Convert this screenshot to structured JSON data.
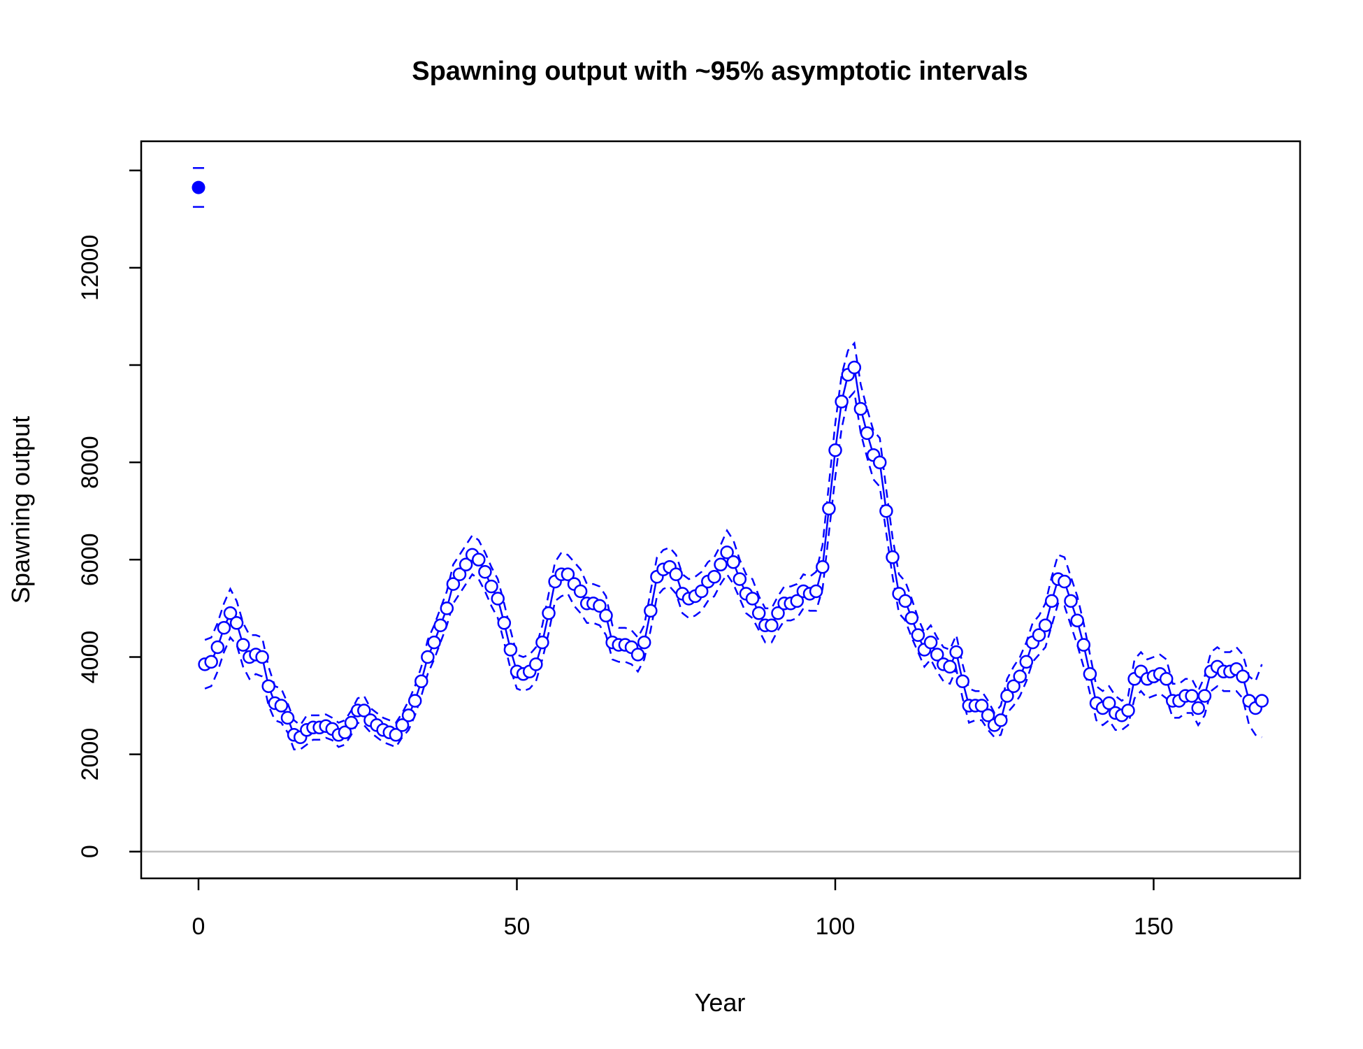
{
  "chart_data": {
    "type": "line",
    "title": "Spawning output with ~95% asymptotic intervals",
    "xlabel": "Year",
    "ylabel": "Spawning output",
    "xlim": [
      -9,
      173
    ],
    "ylim": [
      -550,
      14600
    ],
    "x_ticks": [
      0,
      50,
      100,
      150
    ],
    "y_ticks": [
      0,
      2000,
      4000,
      6000,
      8000,
      12000
    ],
    "grid": false,
    "legend": "none",
    "colors": {
      "series": "#0000ff",
      "zero_line": "#bebebe",
      "axis": "#000000"
    },
    "virgin": {
      "x": 0,
      "y": 13650,
      "lower": 13250,
      "upper": 14050
    },
    "series": [
      {
        "x_start": 1,
        "values": [
          3850,
          3900,
          4200,
          4600,
          4900,
          4700,
          4250,
          4000,
          4050,
          4000,
          3400,
          3050,
          3000,
          2750,
          2400,
          2350,
          2500,
          2550,
          2550,
          2580,
          2520,
          2400,
          2450,
          2650,
          2900,
          2900,
          2700,
          2600,
          2500,
          2450,
          2400,
          2600,
          2800,
          3100,
          3500,
          4000,
          4300,
          4650,
          5000,
          5500,
          5700,
          5900,
          6100,
          6000,
          5750,
          5450,
          5200,
          4700,
          4150,
          3700,
          3650,
          3700,
          3850,
          4300,
          4900,
          5550,
          5700,
          5700,
          5500,
          5350,
          5100,
          5100,
          5050,
          4850,
          4300,
          4250,
          4250,
          4200,
          4050,
          4300,
          4950,
          5650,
          5800,
          5850,
          5700,
          5300,
          5200,
          5250,
          5350,
          5550,
          5650,
          5900,
          6150,
          5950,
          5600,
          5300,
          5200,
          4900,
          4650,
          4650,
          4900,
          5100,
          5100,
          5150,
          5350,
          5300,
          5350,
          5850,
          7050,
          8250,
          9250,
          9800,
          9950,
          9100,
          8600,
          8150,
          8000,
          7000,
          6050,
          5300,
          5150,
          4800,
          4450,
          4150,
          4300,
          4050,
          3850,
          3800,
          4100,
          3500,
          3000,
          3000,
          3000,
          2800,
          2600,
          2700,
          3200,
          3400,
          3600,
          3900,
          4300,
          4450,
          4650,
          5150,
          5600,
          5550,
          5150,
          4750,
          4250,
          3650,
          3050,
          2950,
          3050,
          2850,
          2800,
          2900,
          3550,
          3700,
          3550,
          3600,
          3650,
          3550,
          3100,
          3100,
          3200,
          3200,
          2950,
          3200,
          3700,
          3800,
          3700,
          3700,
          3750,
          3600,
          3100,
          2950,
          3100
        ],
        "upper": [
          4350,
          4400,
          4700,
          5100,
          5400,
          5150,
          4700,
          4450,
          4450,
          4400,
          3800,
          3400,
          3350,
          3050,
          2700,
          2600,
          2800,
          2800,
          2800,
          2820,
          2750,
          2650,
          2700,
          2900,
          3150,
          3200,
          2950,
          2850,
          2750,
          2700,
          2650,
          2850,
          3100,
          3400,
          3800,
          4350,
          4650,
          5000,
          5350,
          5900,
          6100,
          6300,
          6500,
          6400,
          6150,
          5850,
          5600,
          5100,
          4550,
          4050,
          4000,
          4050,
          4200,
          4650,
          5300,
          5950,
          6150,
          6100,
          5950,
          5800,
          5500,
          5500,
          5450,
          5250,
          4650,
          4600,
          4600,
          4550,
          4400,
          4650,
          5350,
          6050,
          6200,
          6250,
          6100,
          5700,
          5600,
          5650,
          5750,
          5950,
          6050,
          6300,
          6600,
          6400,
          6000,
          5700,
          5600,
          5250,
          5000,
          5000,
          5250,
          5450,
          5450,
          5500,
          5700,
          5650,
          5750,
          6300,
          7550,
          8800,
          9800,
          10300,
          10450,
          9600,
          9100,
          8650,
          8500,
          7450,
          6450,
          5700,
          5550,
          5200,
          4800,
          4500,
          4650,
          4400,
          4200,
          4150,
          4450,
          3850,
          3350,
          3300,
          3300,
          3100,
          2850,
          3000,
          3550,
          3800,
          4000,
          4300,
          4700,
          4850,
          5100,
          5650,
          6100,
          6050,
          5650,
          5250,
          4700,
          4050,
          3400,
          3300,
          3400,
          3200,
          3100,
          3200,
          3950,
          4100,
          3950,
          4000,
          4050,
          3950,
          3450,
          3450,
          3550,
          3550,
          3300,
          3600,
          4100,
          4200,
          4100,
          4100,
          4200,
          4050,
          3600,
          3500,
          3850
        ],
        "lower": [
          3350,
          3400,
          3700,
          4100,
          4400,
          4250,
          3800,
          3550,
          3650,
          3600,
          3000,
          2700,
          2650,
          2450,
          2100,
          2100,
          2200,
          2300,
          2300,
          2340,
          2290,
          2150,
          2200,
          2400,
          2650,
          2600,
          2450,
          2350,
          2250,
          2200,
          2150,
          2350,
          2500,
          2800,
          3200,
          3650,
          3950,
          4300,
          4650,
          5100,
          5300,
          5500,
          5700,
          5600,
          5350,
          5050,
          4800,
          4300,
          3750,
          3350,
          3300,
          3350,
          3500,
          3950,
          4500,
          5150,
          5250,
          5300,
          5050,
          4900,
          4700,
          4700,
          4650,
          4450,
          3950,
          3900,
          3900,
          3850,
          3700,
          3950,
          4550,
          5250,
          5400,
          5450,
          5300,
          4900,
          4800,
          4850,
          4950,
          5150,
          5250,
          5500,
          5700,
          5500,
          5200,
          4900,
          4800,
          4550,
          4300,
          4300,
          4550,
          4750,
          4750,
          4800,
          5000,
          4950,
          4950,
          5400,
          6550,
          7700,
          8700,
          9300,
          9450,
          8600,
          8100,
          7650,
          7500,
          6550,
          5650,
          4900,
          4750,
          4400,
          4100,
          3800,
          3950,
          3700,
          3500,
          3450,
          3750,
          3150,
          2650,
          2700,
          2700,
          2500,
          2350,
          2400,
          2850,
          3000,
          3200,
          3500,
          3900,
          4050,
          4200,
          4650,
          5100,
          5050,
          4650,
          4250,
          3800,
          3250,
          2700,
          2600,
          2700,
          2500,
          2500,
          2600,
          3150,
          3300,
          3150,
          3200,
          3250,
          3150,
          2750,
          2750,
          2850,
          2850,
          2600,
          2800,
          3300,
          3400,
          3300,
          3300,
          3300,
          3150,
          2600,
          2400,
          2350
        ]
      }
    ]
  }
}
